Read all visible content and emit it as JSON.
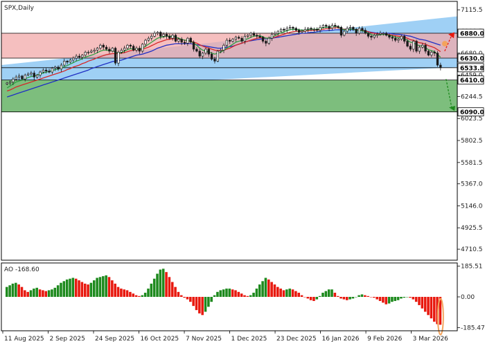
{
  "chart_title": "SPX,Daily",
  "colors": {
    "background": "#ffffff",
    "frame": "#000000",
    "bull_candle": "#1a1a1a",
    "bear_candle": "#1a1a1a",
    "channel_fill": "#9fd0f5",
    "resistance_zone": "#f2aaaa",
    "support_zone": "#7dbe7d",
    "ma_fast": "#2ea043",
    "ma_mid": "#d62728",
    "ma_slow": "#1f2fc4",
    "ao_up": "#1e8a1e",
    "ao_down": "#e8190f",
    "arrow_up": "#e8190f",
    "arrow_down": "#1e8a1e"
  },
  "chart_data": [
    {
      "type": "candlestick",
      "title": "SPX,Daily",
      "ylim": [
        4600,
        7200
      ],
      "y_ticks": [
        "7115.5",
        "6900.5",
        "6680.0",
        "6459.0",
        "6244.5",
        "6023.5",
        "5802.5",
        "5581.5",
        "5367.0",
        "5146.0",
        "4925.5",
        "4710.5"
      ],
      "x_ticks": [
        "11 Aug 2025",
        "2 Sep 2025",
        "24 Sep 2025",
        "16 Oct 2025",
        "7 Nov 2025",
        "1 Dec 2025",
        "23 Dec 2025",
        "16 Jan 2026",
        "9 Feb 2026",
        "3 Mar 2026"
      ],
      "levels": [
        {
          "label": "6880.0",
          "value": 6880
        },
        {
          "label": "6630.0",
          "value": 6630
        },
        {
          "label": "6533.8",
          "value": 6533.8
        },
        {
          "label": "6410.0",
          "value": 6410
        },
        {
          "label": "6090.0",
          "value": 6090
        }
      ],
      "resistance_zone": [
        6630,
        6880
      ],
      "support_zone": [
        6090,
        6410
      ],
      "channel": {
        "start_low": 6300,
        "start_high": 6560,
        "end_low": 6540,
        "end_high": 7050
      },
      "close": [
        6380,
        6390,
        6420,
        6440,
        6450,
        6420,
        6460,
        6470,
        6480,
        6440,
        6460,
        6490,
        6510,
        6500,
        6490,
        6530,
        6540,
        6520,
        6560,
        6600,
        6590,
        6610,
        6630,
        6650,
        6640,
        6660,
        6690,
        6690,
        6700,
        6710,
        6730,
        6760,
        6740,
        6720,
        6700,
        6730,
        6580,
        6690,
        6710,
        6730,
        6760,
        6750,
        6710,
        6730,
        6700,
        6770,
        6810,
        6830,
        6850,
        6880,
        6890,
        6850,
        6870,
        6850,
        6830,
        6860,
        6800,
        6820,
        6790,
        6780,
        6830,
        6790,
        6720,
        6700,
        6650,
        6680,
        6720,
        6670,
        6620,
        6600,
        6700,
        6710,
        6760,
        6810,
        6800,
        6820,
        6840,
        6830,
        6800,
        6850,
        6860,
        6880,
        6860,
        6850,
        6840,
        6800,
        6780,
        6830,
        6870,
        6880,
        6900,
        6920,
        6910,
        6930,
        6940,
        6930,
        6910,
        6890,
        6900,
        6920,
        6930,
        6920,
        6920,
        6910,
        6940,
        6960,
        6950,
        6930,
        6960,
        6950,
        6940,
        6860,
        6900,
        6930,
        6940,
        6920,
        6880,
        6930,
        6910,
        6880,
        6850,
        6840,
        6860,
        6870,
        6880,
        6880,
        6860,
        6840,
        6830,
        6810,
        6820,
        6850,
        6800,
        6750,
        6720,
        6800,
        6700,
        6740,
        6760,
        6700,
        6660,
        6690,
        6680,
        6560,
        6533.8
      ],
      "ma_fast": [
        6330,
        6350,
        6370,
        6390,
        6400,
        6410,
        6420,
        6435,
        6445,
        6450,
        6460,
        6470,
        6480,
        6490,
        6495,
        6505,
        6515,
        6520,
        6530,
        6545,
        6555,
        6570,
        6585,
        6600,
        6610,
        6625,
        6640,
        6650,
        6660,
        6670,
        6685,
        6700,
        6710,
        6710,
        6705,
        6705,
        6690,
        6680,
        6685,
        6700,
        6715,
        6725,
        6720,
        6720,
        6720,
        6730,
        6750,
        6770,
        6790,
        6810,
        6830,
        6840,
        6845,
        6850,
        6850,
        6850,
        6840,
        6830,
        6820,
        6810,
        6810,
        6800,
        6780,
        6760,
        6730,
        6710,
        6700,
        6690,
        6680,
        6670,
        6680,
        6690,
        6710,
        6730,
        6750,
        6770,
        6790,
        6800,
        6805,
        6815,
        6825,
        6840,
        6850,
        6855,
        6855,
        6845,
        6830,
        6830,
        6840,
        6855,
        6870,
        6885,
        6895,
        6905,
        6915,
        6920,
        6920,
        6915,
        6910,
        6910,
        6915,
        6920,
        6920,
        6920,
        6925,
        6935,
        6940,
        6940,
        6945,
        6950,
        6945,
        6925,
        6915,
        6915,
        6920,
        6920,
        6910,
        6910,
        6905,
        6895,
        6880,
        6865,
        6860,
        6860,
        6865,
        6870,
        6865,
        6860,
        6850,
        6840,
        6835,
        6835,
        6825,
        6810,
        6790,
        6785,
        6765,
        6755,
        6750,
        6735,
        6715,
        6705,
        6695,
        6665,
        6640
      ],
      "ma_mid": [
        6300,
        6310,
        6325,
        6340,
        6350,
        6360,
        6370,
        6380,
        6390,
        6400,
        6410,
        6420,
        6430,
        6440,
        6450,
        6460,
        6470,
        6480,
        6490,
        6500,
        6515,
        6525,
        6540,
        6550,
        6560,
        6575,
        6585,
        6600,
        6610,
        6620,
        6635,
        6645,
        6655,
        6665,
        6670,
        6675,
        6675,
        6675,
        6680,
        6685,
        6695,
        6705,
        6710,
        6715,
        6715,
        6720,
        6730,
        6740,
        6755,
        6770,
        6785,
        6795,
        6805,
        6815,
        6820,
        6825,
        6825,
        6820,
        6815,
        6810,
        6805,
        6800,
        6790,
        6780,
        6765,
        6750,
        6740,
        6730,
        6720,
        6710,
        6705,
        6705,
        6710,
        6720,
        6730,
        6745,
        6760,
        6770,
        6780,
        6790,
        6800,
        6810,
        6820,
        6830,
        6835,
        6835,
        6830,
        6830,
        6835,
        6840,
        6850,
        6860,
        6870,
        6880,
        6890,
        6895,
        6900,
        6900,
        6900,
        6900,
        6905,
        6905,
        6910,
        6910,
        6915,
        6920,
        6925,
        6925,
        6930,
        6935,
        6935,
        6925,
        6920,
        6920,
        6920,
        6920,
        6915,
        6915,
        6910,
        6905,
        6895,
        6885,
        6880,
        6875,
        6875,
        6875,
        6870,
        6865,
        6860,
        6855,
        6850,
        6845,
        6840,
        6830,
        6815,
        6810,
        6795,
        6785,
        6780,
        6770,
        6755,
        6745,
        6735,
        6715,
        6695
      ],
      "ma_slow": [
        6240,
        6250,
        6260,
        6270,
        6280,
        6290,
        6300,
        6310,
        6320,
        6330,
        6340,
        6350,
        6360,
        6370,
        6380,
        6390,
        6400,
        6410,
        6420,
        6430,
        6440,
        6450,
        6460,
        6470,
        6480,
        6490,
        6500,
        6510,
        6525,
        6535,
        6545,
        6555,
        6565,
        6575,
        6585,
        6595,
        6600,
        6605,
        6610,
        6620,
        6630,
        6640,
        6650,
        6660,
        6665,
        6670,
        6680,
        6690,
        6700,
        6715,
        6730,
        6740,
        6750,
        6760,
        6765,
        6770,
        6775,
        6775,
        6775,
        6775,
        6775,
        6775,
        6770,
        6765,
        6760,
        6755,
        6750,
        6745,
        6740,
        6735,
        6730,
        6730,
        6735,
        6740,
        6745,
        6750,
        6760,
        6770,
        6780,
        6790,
        6800,
        6805,
        6810,
        6815,
        6820,
        6825,
        6825,
        6825,
        6830,
        6835,
        6840,
        6845,
        6850,
        6855,
        6860,
        6865,
        6870,
        6875,
        6880,
        6880,
        6885,
        6890,
        6890,
        6895,
        6900,
        6905,
        6905,
        6910,
        6910,
        6915,
        6915,
        6915,
        6915,
        6915,
        6915,
        6915,
        6915,
        6910,
        6905,
        6900,
        6895,
        6890,
        6885,
        6880,
        6880,
        6880,
        6880,
        6880,
        6875,
        6870,
        6870,
        6865,
        6860,
        6855,
        6850,
        6840,
        6830,
        6820,
        6815,
        6810,
        6800,
        6790,
        6780,
        6770,
        6760
      ]
    },
    {
      "type": "bar",
      "title": "AO -168.60",
      "indicator": "Awesome Oscillator",
      "current_value": -168.6,
      "ylim": [
        -205,
        205
      ],
      "y_ticks": [
        "185.51",
        "0.00",
        "-185.47"
      ],
      "values": [
        60,
        70,
        80,
        85,
        75,
        60,
        40,
        30,
        40,
        50,
        55,
        45,
        40,
        35,
        40,
        45,
        55,
        70,
        85,
        95,
        105,
        110,
        115,
        110,
        100,
        90,
        80,
        75,
        85,
        100,
        115,
        120,
        125,
        130,
        120,
        100,
        80,
        60,
        50,
        45,
        40,
        30,
        20,
        10,
        5,
        10,
        25,
        50,
        80,
        110,
        140,
        165,
        170,
        150,
        120,
        90,
        60,
        30,
        10,
        -5,
        -15,
        -30,
        -55,
        -80,
        -100,
        -110,
        -90,
        -60,
        -30,
        10,
        30,
        40,
        45,
        50,
        50,
        45,
        40,
        30,
        20,
        10,
        5,
        10,
        25,
        50,
        75,
        95,
        115,
        105,
        90,
        75,
        60,
        50,
        40,
        45,
        50,
        45,
        35,
        25,
        10,
        0,
        -10,
        -20,
        -25,
        -15,
        5,
        25,
        35,
        45,
        45,
        25,
        5,
        -10,
        -15,
        -20,
        -15,
        -10,
        0,
        10,
        15,
        10,
        5,
        0,
        -5,
        -15,
        -25,
        -35,
        -45,
        -40,
        -30,
        -25,
        -20,
        -10,
        -5,
        0,
        -5,
        -15,
        -30,
        -50,
        -70,
        -90,
        -110,
        -130,
        -150,
        -165,
        -168.6
      ]
    }
  ]
}
